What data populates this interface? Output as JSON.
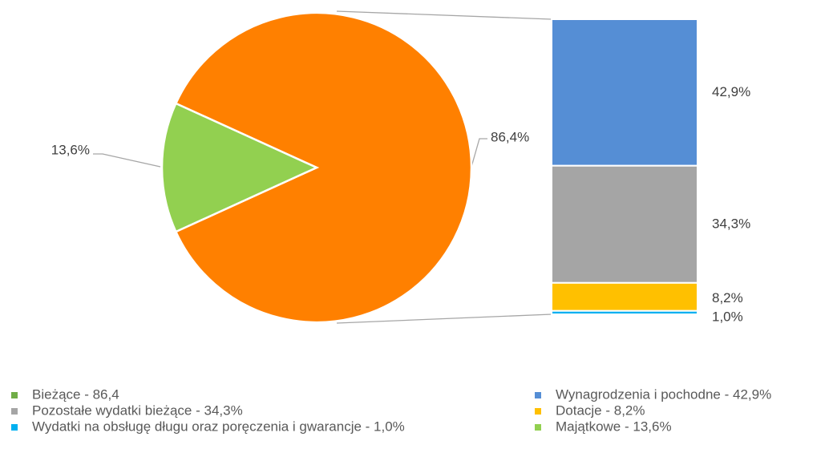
{
  "chart_data": {
    "type": "pie-of-bar",
    "pie": {
      "values": [
        86.4,
        13.6
      ],
      "value_labels": [
        "86,4%",
        "13,6%"
      ],
      "colors": [
        "#ff8000",
        "#92d050"
      ]
    },
    "bar": {
      "values": [
        42.9,
        34.3,
        8.2,
        1.0
      ],
      "value_labels": [
        "42,9%",
        "34,3%",
        "8,2%",
        "1,0%"
      ],
      "colors": [
        "#558ed5",
        "#a5a5a5",
        "#ffc000",
        "#00b0f0"
      ]
    },
    "legend": [
      {
        "label": "Bieżące - 86,4",
        "color": "#70ad47"
      },
      {
        "label": "Wynagrodzenia i pochodne - 42,9%",
        "color": "#558ed5"
      },
      {
        "label": "Pozostałe wydatki bieżące - 34,3%",
        "color": "#a5a5a5"
      },
      {
        "label": "Dotacje - 8,2%",
        "color": "#ffc000"
      },
      {
        "label": "Wydatki na obsługę długu oraz poręczenia i gwarancje - 1,0%",
        "color": "#00b0f0"
      },
      {
        "label": "Majątkowe - 13,6%",
        "color": "#92d050"
      }
    ]
  }
}
